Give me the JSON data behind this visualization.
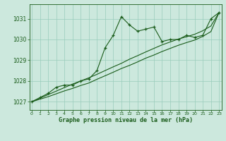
{
  "background_color": "#cce8dd",
  "grid_color": "#99ccbb",
  "line_color": "#1a5c1a",
  "marker_color": "#1a5c1a",
  "title": "Graphe pression niveau de la mer (hPa)",
  "x_ticks": [
    0,
    1,
    2,
    3,
    4,
    5,
    6,
    7,
    8,
    9,
    10,
    11,
    12,
    13,
    14,
    15,
    16,
    17,
    18,
    19,
    20,
    21,
    22,
    23
  ],
  "ylim": [
    1026.6,
    1031.7
  ],
  "yticks": [
    1027,
    1028,
    1029,
    1030,
    1031
  ],
  "main_series": [
    1027.0,
    1027.2,
    1027.4,
    1027.7,
    1027.8,
    1027.8,
    1028.0,
    1028.1,
    1028.5,
    1029.6,
    1030.2,
    1031.1,
    1030.7,
    1030.4,
    1030.5,
    1030.6,
    1029.9,
    1030.0,
    1030.0,
    1030.2,
    1030.1,
    1030.2,
    1031.0,
    1031.3
  ],
  "line2": [
    1027.0,
    1027.17,
    1027.34,
    1027.51,
    1027.68,
    1027.85,
    1028.0,
    1028.15,
    1028.32,
    1028.5,
    1028.68,
    1028.85,
    1029.05,
    1029.22,
    1029.4,
    1029.57,
    1029.74,
    1029.88,
    1030.02,
    1030.13,
    1030.25,
    1030.42,
    1030.65,
    1031.3
  ],
  "line3": [
    1027.0,
    1027.12,
    1027.24,
    1027.38,
    1027.52,
    1027.64,
    1027.78,
    1027.9,
    1028.08,
    1028.25,
    1028.42,
    1028.6,
    1028.75,
    1028.92,
    1029.1,
    1029.25,
    1029.42,
    1029.57,
    1029.72,
    1029.85,
    1029.97,
    1030.15,
    1030.38,
    1031.3
  ]
}
